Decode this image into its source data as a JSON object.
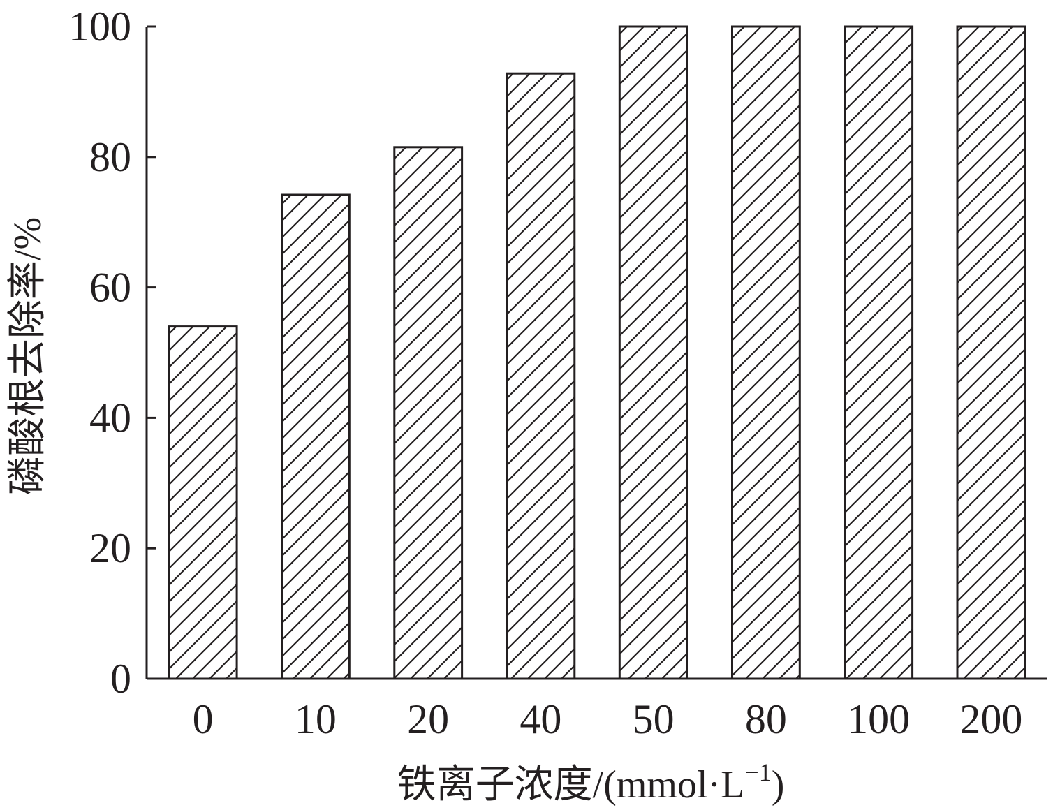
{
  "chart_data": {
    "type": "bar",
    "categories": [
      "0",
      "10",
      "20",
      "40",
      "50",
      "80",
      "100",
      "200"
    ],
    "values": [
      54,
      74.2,
      81.5,
      92.8,
      100,
      100,
      100,
      100
    ],
    "title": "",
    "xlabel": "铁离子浓度/(mmol·L",
    "xlabel_superscript": "−1",
    "xlabel_suffix": ")",
    "ylabel": "磷酸根去除率/%",
    "ylim": [
      0,
      100
    ],
    "yticks": [
      0,
      20,
      40,
      60,
      80,
      100
    ],
    "grid": false,
    "legend": "none",
    "bar_fill": "hatched",
    "bar_color": "#231f20"
  }
}
